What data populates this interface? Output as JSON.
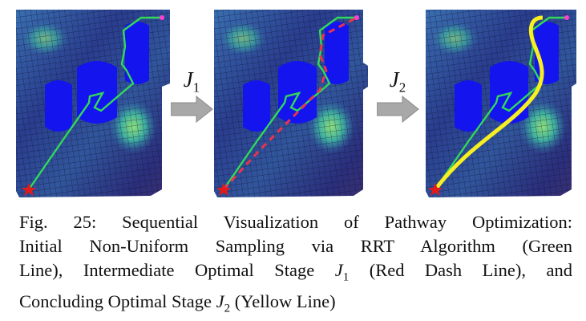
{
  "figure": {
    "arrow_labels": [
      {
        "symbol": "J",
        "sub": "1"
      },
      {
        "symbol": "J",
        "sub": "2"
      }
    ],
    "legend_colors": {
      "rrt_path": "#32d95a",
      "stage1_path": "#e8344f",
      "stage2_path": "#f7ef22",
      "start_marker": "#e21a1a",
      "goal_marker": "#ff3fd0",
      "obstacle": "#1414ee",
      "terrain_low": "#2a2f86",
      "terrain_high": "#5fd08a"
    }
  },
  "caption": {
    "line1": "Fig. 25: Sequential Visualization of Pathway Optimization:",
    "line2": "Initial Non-Uniform Sampling via RRT Algorithm (Green",
    "line3_a": "Line), Intermediate Optimal Stage ",
    "line3_sym": "J",
    "line3_sub": "1",
    "line3_b": " (Red Dash Line), and",
    "line4_a": "Concluding Optimal Stage ",
    "line4_sym": "J",
    "line4_sub": "2",
    "line4_b": " (Yellow Line)"
  }
}
